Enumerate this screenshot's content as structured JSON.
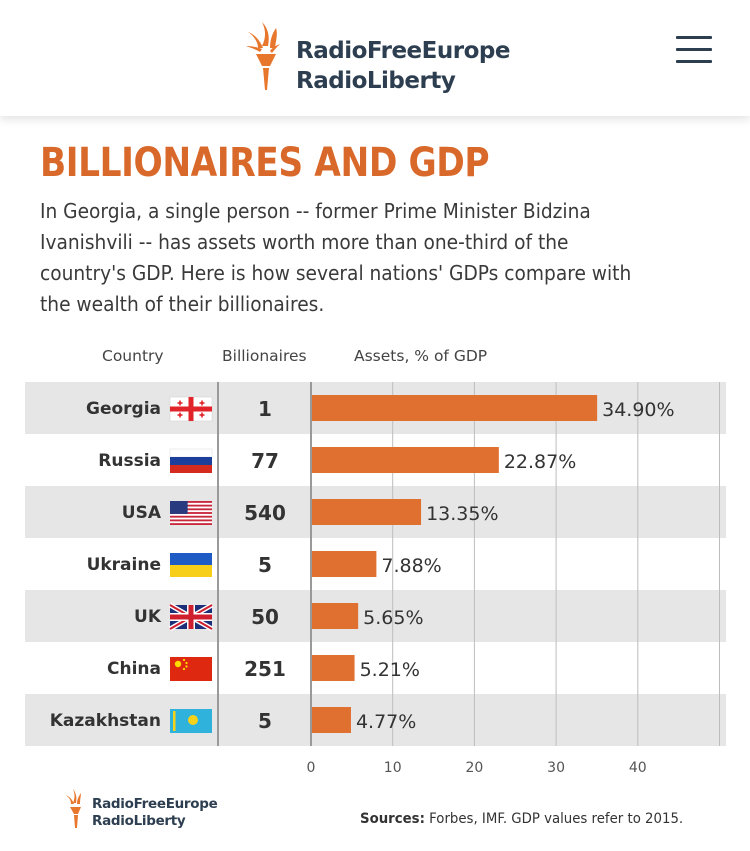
{
  "brand": {
    "line1": "RadioFreeEurope",
    "line2": "RadioLiberty"
  },
  "header": {
    "menu_icon": "hamburger-menu-icon"
  },
  "title": "BILLIONAIRES AND GDP",
  "subtitle": "In Georgia, a single person -- former Prime Minister Bidzina Ivanishvili -- has assets worth more than one-third of the country's GDP.  Here is how several nations' GDPs compare with the wealth of their billionaires.",
  "columns": {
    "country": "Country",
    "billionaires": "Billionaires",
    "assets": "Assets, % of GDP"
  },
  "colors": {
    "accent": "#d9692a",
    "bar": "#e07030",
    "band": "#e6e6e6",
    "axis": "#999999"
  },
  "chart_data": {
    "type": "bar",
    "orientation": "horizontal",
    "categories": [
      "Georgia",
      "Russia",
      "USA",
      "Ukraine",
      "UK",
      "China",
      "Kazakhstan"
    ],
    "billionaires": [
      "1",
      "77",
      "540",
      "5",
      "50",
      "251",
      "5"
    ],
    "values": [
      34.9,
      22.87,
      13.35,
      7.88,
      5.65,
      5.21,
      4.77
    ],
    "value_labels": [
      "34.90%",
      "22.87%",
      "13.35%",
      "7.88%",
      "5.65%",
      "5.21%",
      "4.77%"
    ],
    "flags": [
      "georgia-flag-icon",
      "russia-flag-icon",
      "usa-flag-icon",
      "ukraine-flag-icon",
      "uk-flag-icon",
      "china-flag-icon",
      "kazakhstan-flag-icon"
    ],
    "xticks": [
      "0",
      "10",
      "20",
      "30",
      "40"
    ],
    "xlim": [
      0,
      50
    ],
    "grid": true,
    "xlabel": "Assets, % of GDP"
  },
  "footer": {
    "sources_label": "Sources:",
    "sources_text": " Forbes, IMF. GDP values refer to 2015."
  }
}
